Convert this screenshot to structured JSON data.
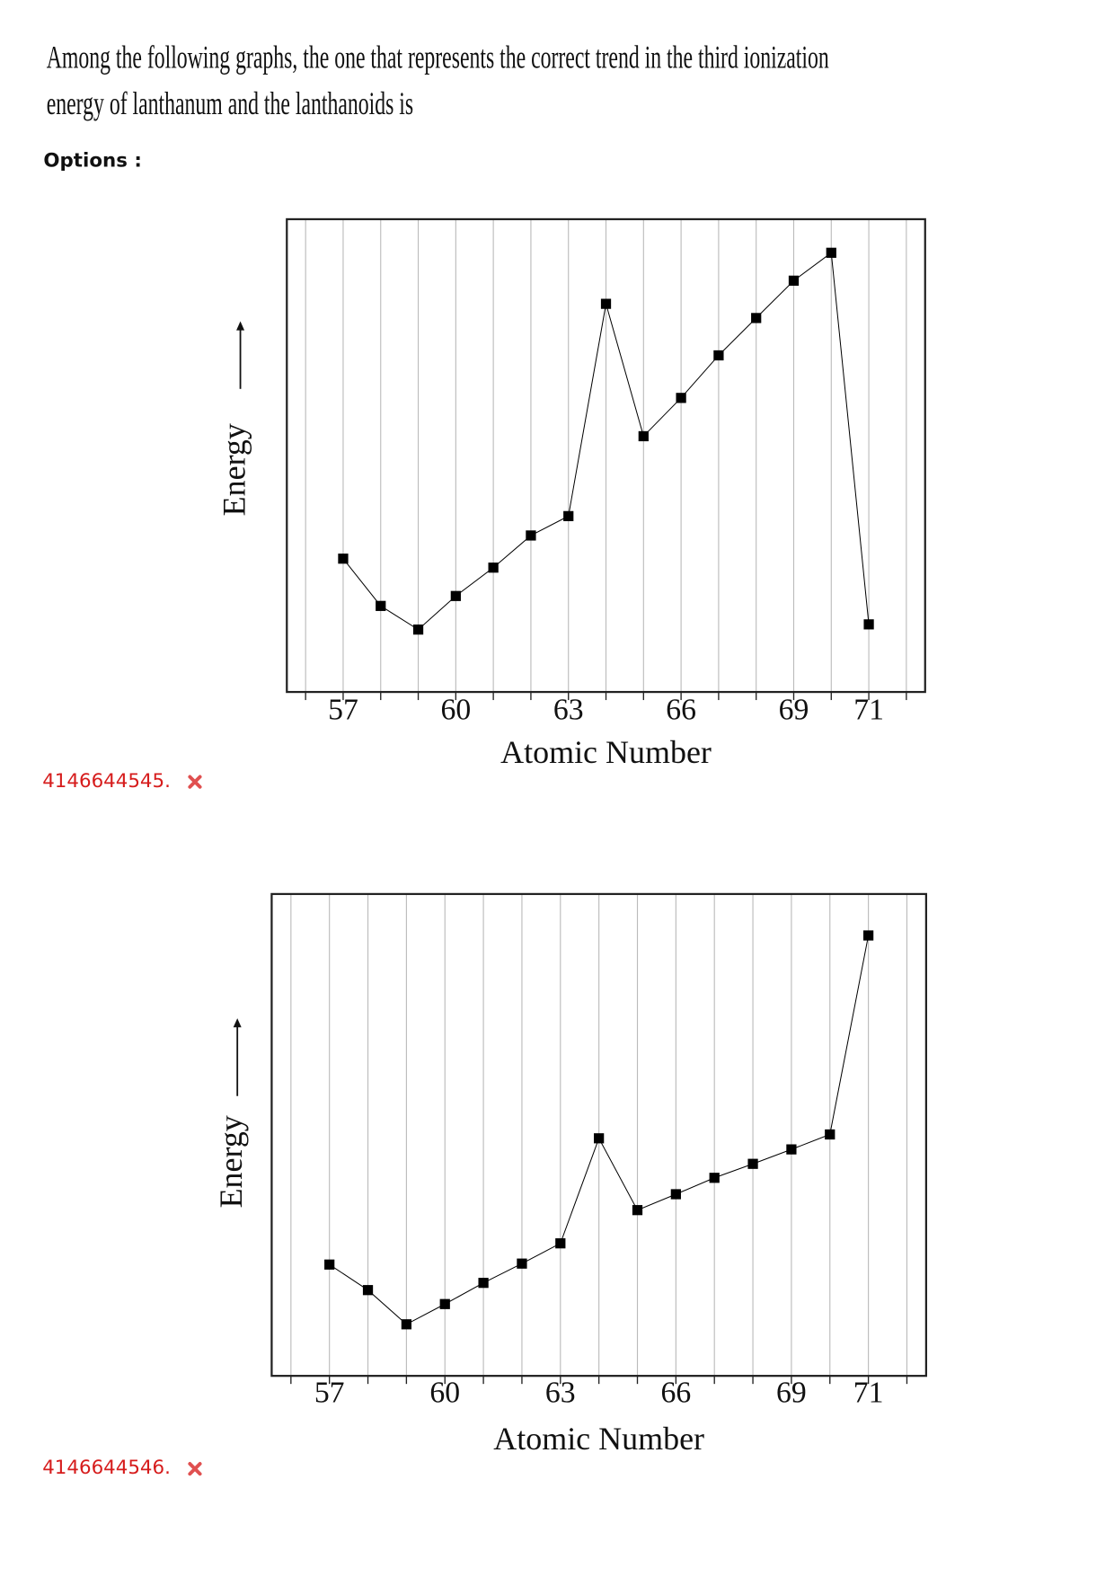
{
  "question": {
    "lines": [
      "Among the following graphs, the one that represents the correct trend in the third ionization",
      "energy of lanthanum and the lanthanoids is"
    ]
  },
  "options_label": "Options :",
  "options": [
    {
      "id": "4146644545.",
      "chart_data": {
        "type": "line",
        "xlabel": "Atomic Number",
        "ylabel": "Energy",
        "x": [
          57,
          58,
          59,
          60,
          61,
          62,
          63,
          64,
          65,
          66,
          67,
          68,
          69,
          70,
          71
        ],
        "series": [
          {
            "color": "#000000",
            "values": [
              28.2,
              18.2,
              13.2,
              20.3,
              26.3,
              33.1,
              37.2,
              82.1,
              54.1,
              62.2,
              71.2,
              79.1,
              87.0,
              92.9,
              14.3
            ]
          }
        ],
        "xlim": [
          55.5,
          72.5
        ],
        "xticks": [
          57,
          60,
          63,
          66,
          69,
          71
        ],
        "minor_xticks": [
          56,
          58,
          59,
          61,
          62,
          64,
          65,
          67,
          68,
          70,
          72
        ],
        "ylim": [
          0,
          100
        ],
        "grid": true,
        "marker": "square"
      }
    },
    {
      "id": "4146644546.",
      "chart_data": {
        "type": "line",
        "xlabel": "Atomic Number",
        "ylabel": "Energy",
        "x": [
          57,
          58,
          59,
          60,
          61,
          62,
          63,
          64,
          65,
          66,
          67,
          68,
          69,
          70,
          71
        ],
        "series": [
          {
            "color": "#000000",
            "values": [
              23.1,
              17.8,
              10.7,
              14.9,
              19.3,
              23.3,
              27.5,
              49.3,
              34.4,
              37.7,
              41.1,
              44.0,
              47.0,
              50.1,
              91.4
            ]
          }
        ],
        "xlim": [
          55.5,
          72.5
        ],
        "xticks": [
          57,
          60,
          63,
          66,
          69,
          71
        ],
        "minor_xticks": [
          56,
          58,
          59,
          61,
          62,
          64,
          65,
          67,
          68,
          70,
          72
        ],
        "ylim": [
          0,
          100
        ],
        "grid": true,
        "marker": "square"
      }
    }
  ]
}
